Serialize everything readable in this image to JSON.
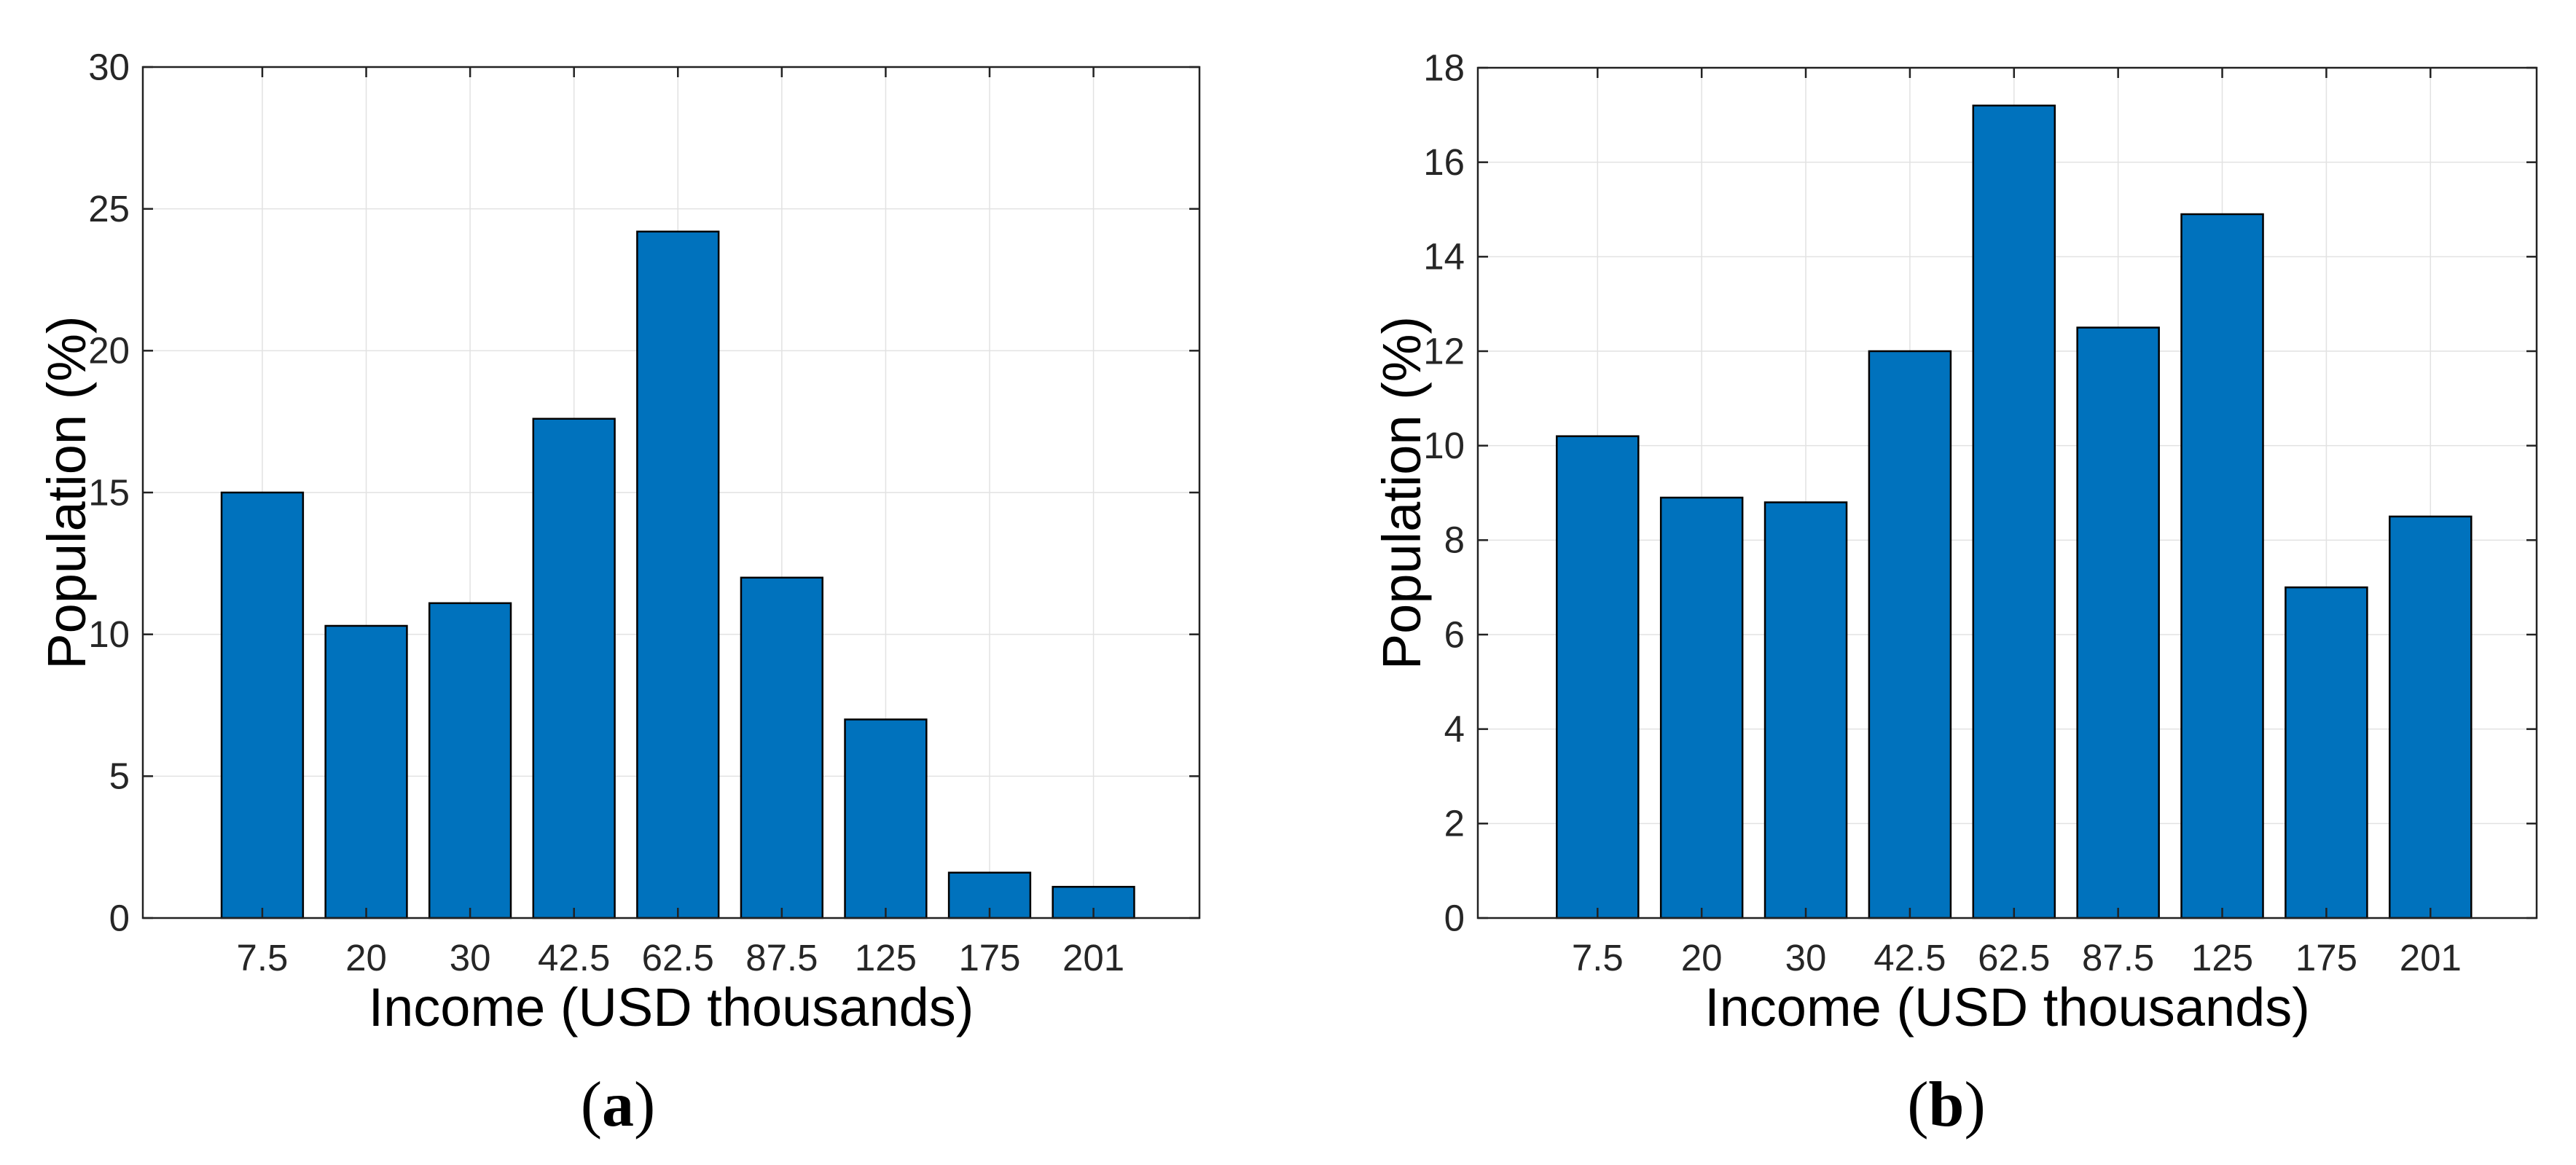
{
  "figure": {
    "background": "#ffffff"
  },
  "captions": {
    "a": {
      "open": "(",
      "letter": "a",
      "close": ")"
    },
    "b": {
      "open": "(",
      "letter": "b",
      "close": ")"
    }
  },
  "colors": {
    "bar": "#0072BD",
    "bar_edge": "#000000",
    "grid": "#e2e2e2",
    "spine": "#222222",
    "tick_label": "#262626",
    "axis_label": "#000000"
  },
  "chart_data": [
    {
      "id": "a",
      "type": "bar",
      "title": "",
      "xlabel": "Income (USD thousands)",
      "ylabel": "Population (%)",
      "categories": [
        "7.5",
        "20",
        "30",
        "42.5",
        "62.5",
        "87.5",
        "125",
        "175",
        "201"
      ],
      "values": [
        15,
        10.3,
        11.1,
        17.6,
        24.2,
        12,
        7,
        1.6,
        1.1
      ],
      "yticks": [
        0,
        5,
        10,
        15,
        20,
        25,
        30
      ],
      "ylim": [
        0,
        30
      ],
      "grid": true,
      "legend": null,
      "bar_color": "#0072BD",
      "bar_edge_color": "#000000"
    },
    {
      "id": "b",
      "type": "bar",
      "title": "",
      "xlabel": "Income (USD thousands)",
      "ylabel": "Population (%)",
      "categories": [
        "7.5",
        "20",
        "30",
        "42.5",
        "62.5",
        "87.5",
        "125",
        "175",
        "201"
      ],
      "values": [
        10.2,
        8.9,
        8.8,
        12,
        17.2,
        12.5,
        14.9,
        7,
        8.5
      ],
      "yticks": [
        0,
        2,
        4,
        6,
        8,
        10,
        12,
        14,
        16,
        18
      ],
      "ylim": [
        0,
        18
      ],
      "grid": true,
      "legend": null,
      "bar_color": "#0072BD",
      "bar_edge_color": "#000000"
    }
  ]
}
